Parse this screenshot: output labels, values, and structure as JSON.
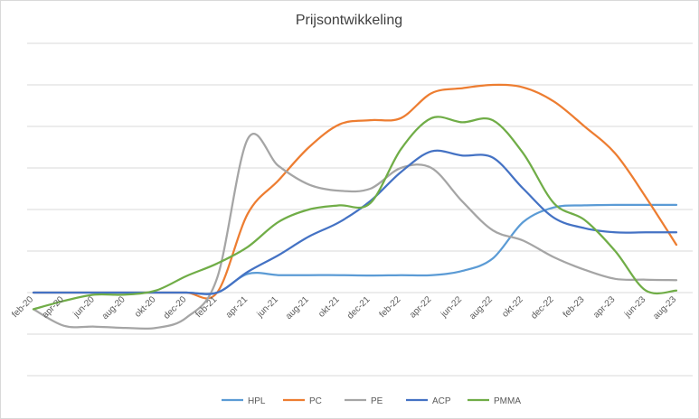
{
  "chart_data": {
    "type": "line",
    "title": "Prijsontwikkeling",
    "xlabel": "",
    "ylabel": "",
    "x": [
      "feb-20",
      "apr-20",
      "jun-20",
      "aug-20",
      "okt-20",
      "dec-20",
      "feb-21",
      "apr-21",
      "jun-21",
      "aug-21",
      "okt-21",
      "dec-21",
      "feb-22",
      "apr-22",
      "jun-22",
      "aug-22",
      "okt-22",
      "dec-22",
      "feb-23",
      "apr-23",
      "jun-23",
      "aug-23"
    ],
    "ylim": [
      -2,
      6
    ],
    "y_gridlines": [
      -2,
      -1,
      0,
      1,
      2,
      3,
      4,
      5,
      6
    ],
    "grid": true,
    "legend_position": "bottom",
    "smooth": true,
    "series": [
      {
        "name": "HPL",
        "color": "#5b9bd5",
        "values": [
          0,
          0,
          0,
          0,
          0,
          0,
          0,
          0.45,
          0.42,
          0.42,
          0.42,
          0.41,
          0.42,
          0.42,
          0.52,
          0.82,
          1.7,
          2.05,
          2.1,
          2.11,
          2.11,
          2.11
        ]
      },
      {
        "name": "PC",
        "color": "#ed7d31",
        "values": [
          0,
          0,
          0,
          0,
          0,
          0,
          0,
          1.9,
          2.7,
          3.5,
          4.05,
          4.15,
          4.2,
          4.8,
          4.92,
          5.0,
          4.94,
          4.6,
          4.0,
          3.35,
          2.3,
          1.15
        ]
      },
      {
        "name": "PE",
        "color": "#a5a5a5",
        "values": [
          -0.4,
          -0.8,
          -0.82,
          -0.85,
          -0.85,
          -0.6,
          0.35,
          3.7,
          3.05,
          2.6,
          2.45,
          2.5,
          3.0,
          3.0,
          2.2,
          1.5,
          1.25,
          0.85,
          0.55,
          0.33,
          0.31,
          0.3
        ]
      },
      {
        "name": "ACP",
        "color": "#4472c4",
        "values": [
          0,
          0,
          0,
          0,
          0,
          0,
          0,
          0.5,
          0.9,
          1.35,
          1.7,
          2.2,
          2.9,
          3.4,
          3.3,
          3.25,
          2.5,
          1.8,
          1.55,
          1.45,
          1.45,
          1.45
        ]
      },
      {
        "name": "PMMA",
        "color": "#70ad47",
        "values": [
          -0.4,
          -0.2,
          -0.05,
          -0.05,
          0.05,
          0.4,
          0.7,
          1.1,
          1.7,
          2.0,
          2.1,
          2.15,
          3.45,
          4.2,
          4.1,
          4.15,
          3.35,
          2.15,
          1.75,
          1.0,
          0.05,
          0.05
        ]
      }
    ]
  }
}
